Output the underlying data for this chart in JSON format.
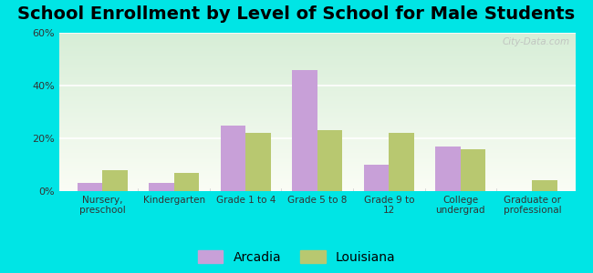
{
  "title": "School Enrollment by Level of School for Male Students",
  "categories": [
    "Nursery,\npreschool",
    "Kindergarten",
    "Grade 1 to 4",
    "Grade 5 to 8",
    "Grade 9 to\n12",
    "College\nundergrad",
    "Graduate or\nprofessional"
  ],
  "arcadia": [
    3,
    3,
    25,
    46,
    10,
    17,
    0
  ],
  "louisiana": [
    8,
    7,
    22,
    23,
    22,
    16,
    4
  ],
  "arcadia_color": "#c8a0d8",
  "louisiana_color": "#b8c870",
  "ylim": [
    0,
    60
  ],
  "yticks": [
    0,
    20,
    40,
    60
  ],
  "ytick_labels": [
    "0%",
    "20%",
    "40%",
    "60%"
  ],
  "background_color": "#00e5e5",
  "title_fontsize": 14,
  "bar_width": 0.35,
  "legend_labels": [
    "Arcadia",
    "Louisiana"
  ],
  "watermark": "City-Data.com"
}
